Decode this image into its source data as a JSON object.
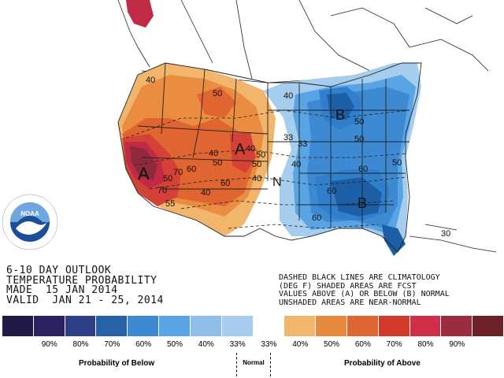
{
  "map": {
    "region_labels": [
      {
        "text": "A",
        "kind": "above"
      },
      {
        "text": "A",
        "kind": "above"
      },
      {
        "text": "B",
        "kind": "below"
      },
      {
        "text": "B",
        "kind": "below"
      },
      {
        "text": "N",
        "kind": "normal"
      }
    ],
    "contour_labels": [
      "40",
      "50",
      "40",
      "50",
      "60",
      "70",
      "50",
      "60",
      "50",
      "40",
      "70",
      "40",
      "50",
      "33",
      "33",
      "40",
      "50",
      "60",
      "60",
      "40",
      "55",
      "40",
      "50",
      "30",
      "60",
      "50"
    ],
    "colors": {
      "above_40": "#f1b56c",
      "above_50": "#ea8d40",
      "above_60": "#e06530",
      "above_70": "#d44237",
      "above_80": "#c02a44",
      "below_40": "#92c4ea",
      "below_50": "#4ea1e4",
      "below_60": "#2f7fcc",
      "below_70": "#1c5fa6",
      "normal": "#ffffff"
    }
  },
  "logo": {
    "name": "NOAA",
    "ring_text": "NATIONAL OCEANIC AND ATMOSPHERIC ADMINISTRATION · U.S. DEPARTMENT OF COMMERCE"
  },
  "outlook": {
    "line1": "6-10 DAY OUTLOOK",
    "line2": "TEMPERATURE PROBABILITY",
    "line3": "MADE  15 JAN 2014",
    "line4": "VALID  JAN 21 - 25, 2014"
  },
  "notes": {
    "line1": "DASHED BLACK LINES ARE CLIMATOLOGY",
    "line2": "(DEG F) SHADED AREAS ARE FCST",
    "line3": "VALUES ABOVE (A) OR BELOW (B) NORMAL",
    "line4": "UNSHADED AREAS ARE NEAR-NORMAL"
  },
  "legend": {
    "colors": [
      "#231946",
      "#2c2060",
      "#2e3f87",
      "#2563a6",
      "#3d8ad2",
      "#59a4e4",
      "#8fbfe8",
      "#a7cdee",
      "#ffffff",
      "#f1b56c",
      "#e88a3e",
      "#df6630",
      "#d23b2a",
      "#d12f49",
      "#9b2c3f",
      "#6e2027"
    ],
    "labels": [
      "90%",
      "80%",
      "70%",
      "60%",
      "50%",
      "40%",
      "33%",
      "33%",
      "40%",
      "50%",
      "60%",
      "70%",
      "80%",
      "90%"
    ],
    "below_caption": "Probability of Below",
    "normal_caption": "Normal",
    "above_caption": "Probability of Above"
  }
}
